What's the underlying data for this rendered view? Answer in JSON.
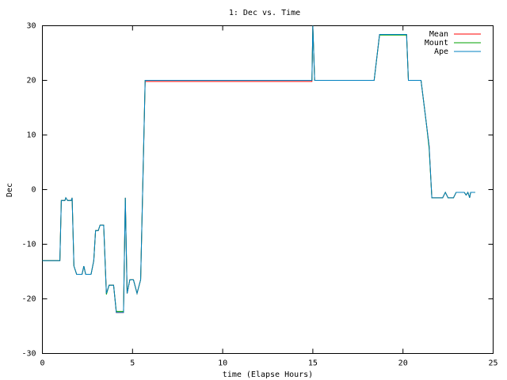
{
  "chart_data": {
    "type": "line",
    "title": "1: Dec vs. Time",
    "xlabel": "time (Elapse Hours)",
    "ylabel": "Dec",
    "x": [
      0,
      0.97,
      1.05,
      1.25,
      1.3,
      1.4,
      1.6,
      1.65,
      1.75,
      1.9,
      2.2,
      2.3,
      2.4,
      2.7,
      2.85,
      2.95,
      3.1,
      3.2,
      3.4,
      3.55,
      3.7,
      3.95,
      4.1,
      4.5,
      4.6,
      4.7,
      4.85,
      5.05,
      5.25,
      5.45,
      5.7,
      14.95,
      15.0,
      15.1,
      18.4,
      18.7,
      20.2,
      20.3,
      21.0,
      21.3,
      21.45,
      21.6,
      22.2,
      22.35,
      22.5,
      22.8,
      22.95,
      23.4,
      23.5,
      23.6,
      23.7,
      23.75,
      24.0
    ],
    "series": [
      {
        "name": "Mean",
        "color": "#ff0000",
        "values": [
          -13,
          -13,
          -2,
          -2,
          -1.5,
          -2,
          -2,
          -1.5,
          -14,
          -15.5,
          -15.5,
          -14,
          -15.5,
          -15.5,
          -13,
          -7.5,
          -7.5,
          -6.5,
          -6.5,
          -19,
          -17.5,
          -17.5,
          -22.5,
          -22.5,
          -1.5,
          -19,
          -16.5,
          -16.5,
          -19,
          -16.5,
          19.8,
          19.8,
          30,
          20,
          20,
          28.4,
          28.4,
          20,
          20,
          12,
          8,
          -1.5,
          -1.5,
          -0.5,
          -1.5,
          -1.5,
          -0.5,
          -0.5,
          -1,
          -0.5,
          -1.5,
          -0.5,
          -0.5
        ]
      },
      {
        "name": "Mount",
        "color": "#00a000",
        "values": [
          -13,
          -13,
          -2,
          -2,
          -1.5,
          -2,
          -2,
          -1.5,
          -14,
          -15.5,
          -15.5,
          -14,
          -15.5,
          -15.5,
          -13,
          -7.5,
          -7.5,
          -6.5,
          -6.5,
          -19.2,
          -17.5,
          -17.5,
          -22.3,
          -22.3,
          -1.5,
          -19,
          -16.5,
          -16.5,
          -19,
          -16.5,
          20,
          20,
          30,
          20,
          20,
          28.3,
          28.3,
          20,
          20,
          12,
          7.5,
          -1.5,
          -1.5,
          -0.5,
          -1.5,
          -1.5,
          -0.5,
          -0.5,
          -1,
          -0.5,
          -1.5,
          -0.5,
          -0.5
        ]
      },
      {
        "name": "Ape",
        "color": "#0080c0",
        "values": [
          -13,
          -13,
          -2,
          -2,
          -1.5,
          -2,
          -2,
          -1.5,
          -14,
          -15.5,
          -15.5,
          -14,
          -15.5,
          -15.5,
          -13,
          -7.5,
          -7.5,
          -6.5,
          -6.5,
          -19,
          -17.5,
          -17.5,
          -22.5,
          -22.5,
          -1.5,
          -19,
          -16.5,
          -16.5,
          -19,
          -16.5,
          20,
          20,
          30,
          20,
          20,
          28.4,
          28.4,
          20,
          20,
          12,
          8,
          -1.5,
          -1.5,
          -0.5,
          -1.5,
          -1.5,
          -0.5,
          -0.5,
          -1,
          -0.5,
          -1.5,
          -0.5,
          -0.5
        ]
      }
    ],
    "xlim": [
      0,
      25
    ],
    "xticks": [
      0,
      5,
      10,
      15,
      20,
      25
    ],
    "ylim": [
      -30,
      30
    ],
    "yticks": [
      -30,
      -20,
      -10,
      0,
      10,
      20,
      30
    ],
    "grid": false,
    "legend": "top-right"
  }
}
